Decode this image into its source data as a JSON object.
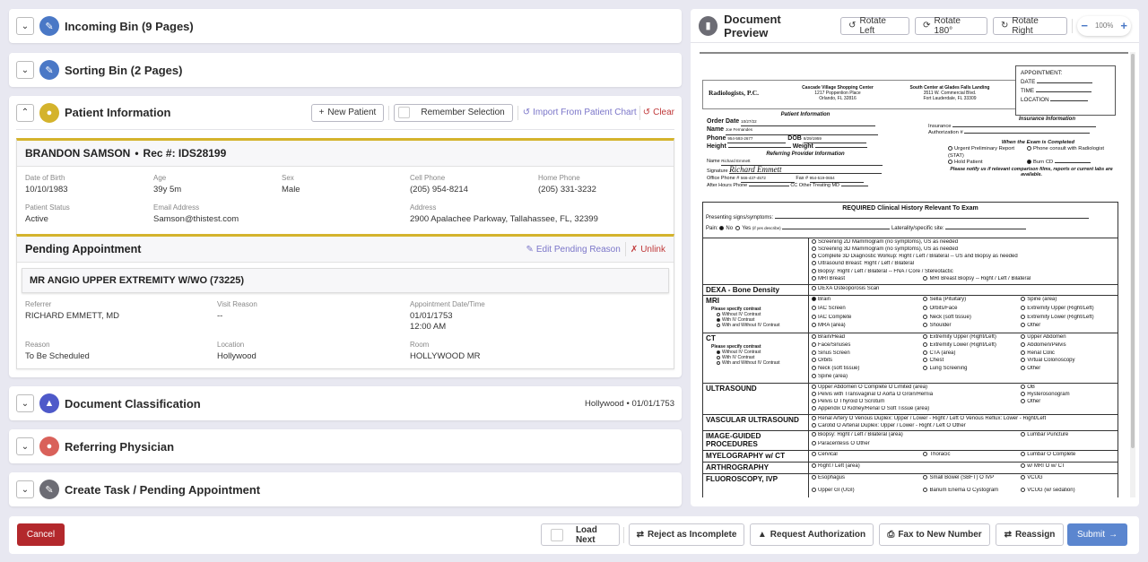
{
  "panels": {
    "incoming": {
      "title": "Incoming Bin (9 Pages)"
    },
    "sorting": {
      "title": "Sorting Bin (2 Pages)"
    },
    "patient": {
      "title": "Patient Information",
      "new_patient": "New Patient",
      "remember": "Remember Selection",
      "import": "Import From Patient Chart",
      "clear": "Clear",
      "name_line": "BRANDON SAMSON",
      "rec": "Rec #: IDS28199",
      "fields": [
        {
          "label": "Date of Birth",
          "value": "10/10/1983"
        },
        {
          "label": "Age",
          "value": "39y 5m"
        },
        {
          "label": "Sex",
          "value": "Male"
        },
        {
          "label": "Cell Phone",
          "value": "(205) 954-8214"
        },
        {
          "label": "Home Phone",
          "value": "(205) 331-3232"
        },
        {
          "label": "Patient Status",
          "value": "Active"
        },
        {
          "label": "Email Address",
          "value": "Samson@thistest.com"
        },
        {
          "label": "Address",
          "value": "2900 Apalachee Parkway, Tallahassee, FL, 32399"
        }
      ]
    },
    "pending": {
      "title": "Pending Appointment",
      "edit": "Edit Pending Reason",
      "unlink": "Unlink",
      "procedure": "MR ANGIO UPPER EXTREMITY W/WO (73225)",
      "fields": [
        {
          "label": "Referrer",
          "value": "RICHARD EMMETT, MD"
        },
        {
          "label": "Visit Reason",
          "value": "--"
        },
        {
          "label": "Appointment Date/Time",
          "value": "01/01/1753",
          "value2": "12:00 AM"
        },
        {
          "label": "Reason",
          "value": "To Be Scheduled"
        },
        {
          "label": "Location",
          "value": "Hollywood"
        },
        {
          "label": "Room",
          "value": "HOLLYWOOD MR"
        }
      ]
    },
    "classification": {
      "title": "Document Classification",
      "summary": "Hollywood • 01/01/1753"
    },
    "referring": {
      "title": "Referring Physician"
    },
    "task": {
      "title": "Create Task / Pending Appointment"
    }
  },
  "colors": {
    "bin": "#4a78c6",
    "patient": "#d4b32c",
    "classification": "#4e59c9",
    "referring": "#d9615a",
    "task": "#6c6c74",
    "cancel": "#b3282c",
    "submit": "#5b86cf",
    "link": "#7b76c9",
    "danger": "#c0393a"
  },
  "preview": {
    "title": "Document Preview",
    "rotate_left": "Rotate Left",
    "rotate_180": "Rotate 180°",
    "rotate_right": "Rotate Right",
    "zoom": "100%",
    "doc": {
      "logo": "Radiologists, P.C.",
      "addr1": [
        "Cascade Village Shopping Center",
        "1217 Poppenlion Place",
        "Orlando, FL 32816"
      ],
      "addr2": [
        "South Center at Glades Falls Landing",
        "3511 W. Commercial Blvd.",
        "Fort Lauderdale, FL 33309"
      ],
      "appt": [
        "APPOINTMENT:",
        "DATE",
        "TIME",
        "LOCATION"
      ],
      "patient_info": "Patient Information",
      "order_date": "Order Date",
      "order_date_v": "10/27/22",
      "name": "Name",
      "name_v": "Joe Fernandes",
      "phone": "Phone",
      "phone_v": "954-593-2677",
      "dob": "DOB",
      "dob_v": "8/29/1959",
      "height": "Height",
      "weight": "Weight",
      "ref_info": "Referring Provider Information",
      "ref_name": "Name",
      "ref_name_v": "Richard Emmett",
      "signature": "Signature",
      "signature_v": "Richard Emmett",
      "office": "Office Phone #",
      "office_v": "566-437-4572",
      "fax": "Fax #",
      "fax_v": "954-519-0654",
      "after": "After Hours Phone",
      "cc": "CC Other Treating MD",
      "ins_info": "Insurance Information",
      "insurance": "Insurance",
      "auth": "Authorization #",
      "when": "When the Exam is Completed",
      "urgent": "Urgent Preliminary Report (STAT)",
      "phone_consult": "Phone consult with Radiologist",
      "hold": "Hold Patient",
      "burn": "Burn CD",
      "notify": "Please notify us if relevant comparison films, reports or current labs are available.",
      "clin_title": "REQUIRED Clinical History Relevant To Exam",
      "presenting": "Presenting signs/symptoms:",
      "pain": "Pain:",
      "pain_no": "No",
      "pain_yes": "Yes",
      "pain_yes_note": "(if yes describe)",
      "laterality": "Laterality/specific site:",
      "rows": [
        {
          "section": "",
          "options": [
            {
              "t": "Screening 2D Mammogram (no symptoms), US as needed",
              "w": 3
            },
            {
              "t": "Screening 3D Mammogram (no symptoms), US as needed",
              "w": 3
            },
            {
              "t": "Complete 3D Diagnostic Workup: Right / Left / Bilateral -- US and Biopsy as needed",
              "w": 3
            },
            {
              "t": "Ultrasound Breast: Right / Left / Bilateral",
              "w": 3
            },
            {
              "t": "Biopsy: Right / Left / Bilateral -- FNA / Core / Stereotactic",
              "w": 3
            },
            {
              "t": "MRI Breast"
            },
            {
              "t": "MRI Breast Biopsy -- Right / Left / Bilateral",
              "w": 2
            }
          ]
        },
        {
          "section": "DEXA - Bone Density",
          "options": [
            {
              "t": "DEXA Osteoporosis Scan",
              "w": 3
            }
          ]
        },
        {
          "section": "MRI",
          "contrast": [
            "Please specify contrast",
            "Without IV Contrast",
            "With IV Contrast",
            "With and Without IV Contrast"
          ],
          "contrast_on": 1,
          "options": [
            {
              "t": "Brain",
              "on": true
            },
            {
              "t": "Sella (Pituitary)"
            },
            {
              "t": "Spine (area)"
            },
            {
              "t": "IAC Screen"
            },
            {
              "t": "Orbits/Face"
            },
            {
              "t": "Extremity Upper (Right/Left)"
            },
            {
              "t": "IAC Complete"
            },
            {
              "t": "Neck (soft tissue)"
            },
            {
              "t": "Extremity Lower (Right/Left)"
            },
            {
              "t": "MRA (area)"
            },
            {
              "t": "Shoulder"
            },
            {
              "t": "Other"
            }
          ]
        },
        {
          "section": "CT",
          "contrast": [
            "Please specify contrast",
            "Without IV Contrast",
            "With IV Contrast",
            "With and Without IV Contrast"
          ],
          "contrast_on": 0,
          "options": [
            {
              "t": "Brain/Head"
            },
            {
              "t": "Extremity Upper (Right/Left)"
            },
            {
              "t": "Upper Abdomen"
            },
            {
              "t": "Face/Sinuses"
            },
            {
              "t": "Extremity Lower (Right/Left)"
            },
            {
              "t": "Abdomen/Pelvis"
            },
            {
              "t": "Sinus Screen"
            },
            {
              "t": "CTA (area)"
            },
            {
              "t": "Renal Colic"
            },
            {
              "t": "Orbits"
            },
            {
              "t": "Chest"
            },
            {
              "t": "Virtual Colonoscopy"
            },
            {
              "t": "Neck (soft tissue)"
            },
            {
              "t": "Lung Screening"
            },
            {
              "t": "Other"
            },
            {
              "t": "Spine (area)",
              "w": 3
            }
          ]
        },
        {
          "section": "ULTRASOUND",
          "options": [
            {
              "t": "Upper Abdomen  O Complete  O Limited (area)",
              "w": 2
            },
            {
              "t": "OB"
            },
            {
              "t": "Pelvis with Transvaginal  O Aorta  O Groin/Hernia",
              "w": 2
            },
            {
              "t": "Hysterosonogram"
            },
            {
              "t": "Pelvis  O Thyroid  O Scrotum",
              "w": 2
            },
            {
              "t": "Other"
            },
            {
              "t": "Appendix  O Kidney/Renal  O Soft Tissue (area)",
              "w": 3
            }
          ]
        },
        {
          "section": "VASCULAR ULTRASOUND",
          "options": [
            {
              "t": "Renal Artery  O Venous Duplex: Upper / Lower - Right / Left  O Venous Reflux: Lower - Right/Left",
              "w": 3
            },
            {
              "t": "Carotid  O Arterial Duplex: Upper / Lower - Right / Left  O Other",
              "w": 3
            }
          ]
        },
        {
          "section": "IMAGE-GUIDED PROCEDURES",
          "options": [
            {
              "t": "Biopsy: Right / Left / Bilateral (area)",
              "w": 2
            },
            {
              "t": "Lumbar Puncture"
            },
            {
              "t": "Paracentesis  O Other",
              "w": 3
            }
          ]
        },
        {
          "section": "MYELOGRAPHY w/ CT",
          "options": [
            {
              "t": "Cervical"
            },
            {
              "t": "Thoracic"
            },
            {
              "t": "Lumbar  O Complete"
            }
          ]
        },
        {
          "section": "ARTHROGRAPHY",
          "options": [
            {
              "t": "Right / Left (area)",
              "w": 2
            },
            {
              "t": "w/ MRI  O w/ CT"
            }
          ]
        },
        {
          "section": "FLUOROSCOPY, IVP",
          "options": [
            {
              "t": "Esophagus"
            },
            {
              "t": "Small Bowel (SBFT)  O IVP"
            },
            {
              "t": "VCUG"
            },
            {
              "t": "Upper GI (UGI)"
            },
            {
              "t": "Barium Enema  O Cystogram"
            },
            {
              "t": "VCUG (w/ sedation)"
            }
          ]
        }
      ]
    }
  },
  "footer": {
    "cancel": "Cancel",
    "load_next": "Load Next",
    "reject": "Reject as Incomplete",
    "request_auth": "Request Authorization",
    "fax": "Fax to New Number",
    "reassign": "Reassign",
    "submit": "Submit"
  }
}
